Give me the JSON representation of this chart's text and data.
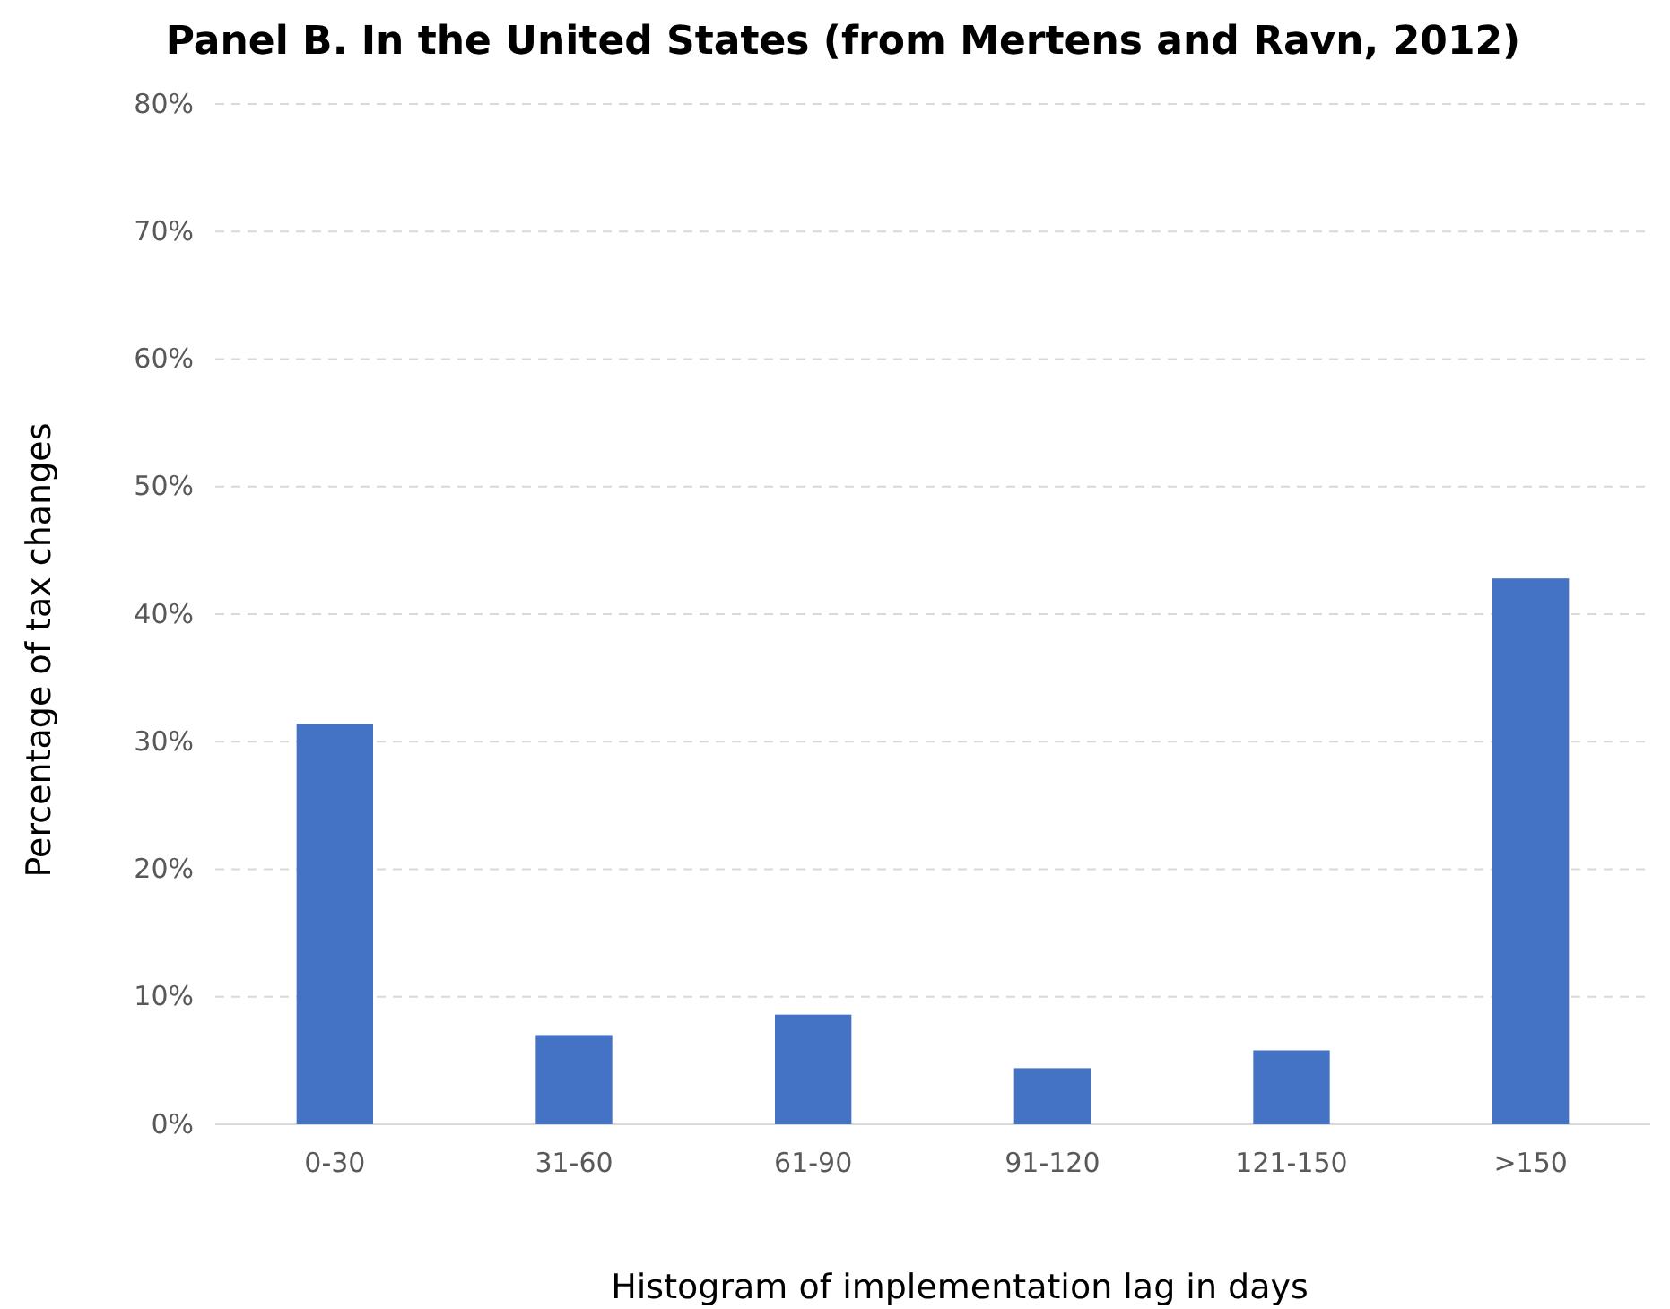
{
  "chart_data": {
    "type": "bar",
    "title": "Panel B. In the United States (from Mertens and Ravn, 2012)",
    "xlabel": "Histogram of implementation lag in days",
    "ylabel": "Percentage of tax changes",
    "categories": [
      "0-30",
      "31-60",
      "61-90",
      "91-120",
      "121-150",
      ">150"
    ],
    "values": [
      31.4,
      7.0,
      8.6,
      4.4,
      5.8,
      42.8
    ],
    "color": "#4472c4",
    "ylim": [
      0,
      80
    ],
    "yticks": [
      {
        "value": 0,
        "label": "0%"
      },
      {
        "value": 10,
        "label": "10%"
      },
      {
        "value": 20,
        "label": "20%"
      },
      {
        "value": 30,
        "label": "30%"
      },
      {
        "value": 40,
        "label": "40%"
      },
      {
        "value": 50,
        "label": "50%"
      },
      {
        "value": 60,
        "label": "60%"
      },
      {
        "value": 70,
        "label": "70%"
      },
      {
        "value": 80,
        "label": "80%"
      }
    ],
    "grid": "y"
  }
}
